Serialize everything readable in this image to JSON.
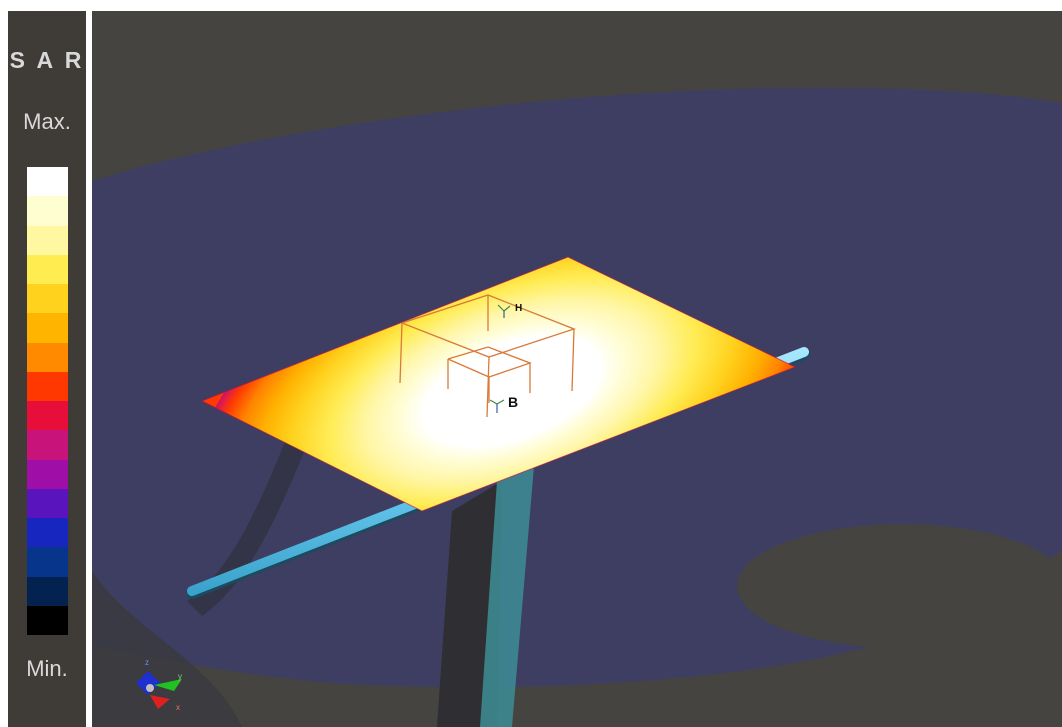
{
  "legend": {
    "title": "S A R",
    "max_label": "Max.",
    "min_label": "Min.",
    "colors": [
      "#ffffff",
      "#fffed0",
      "#fff8a0",
      "#ffec50",
      "#ffd21e",
      "#ffb400",
      "#ff8a00",
      "#ff3700",
      "#e80e3a",
      "#c8147a",
      "#9f0fa8",
      "#5a14be",
      "#1726bf",
      "#08358c",
      "#042250",
      "#000000"
    ]
  },
  "viewport": {
    "background": "#454440",
    "marker_H": "H",
    "marker_B": "B"
  },
  "axes_widget": {
    "x_label": "x",
    "y_label": "y",
    "z_label": "z"
  }
}
